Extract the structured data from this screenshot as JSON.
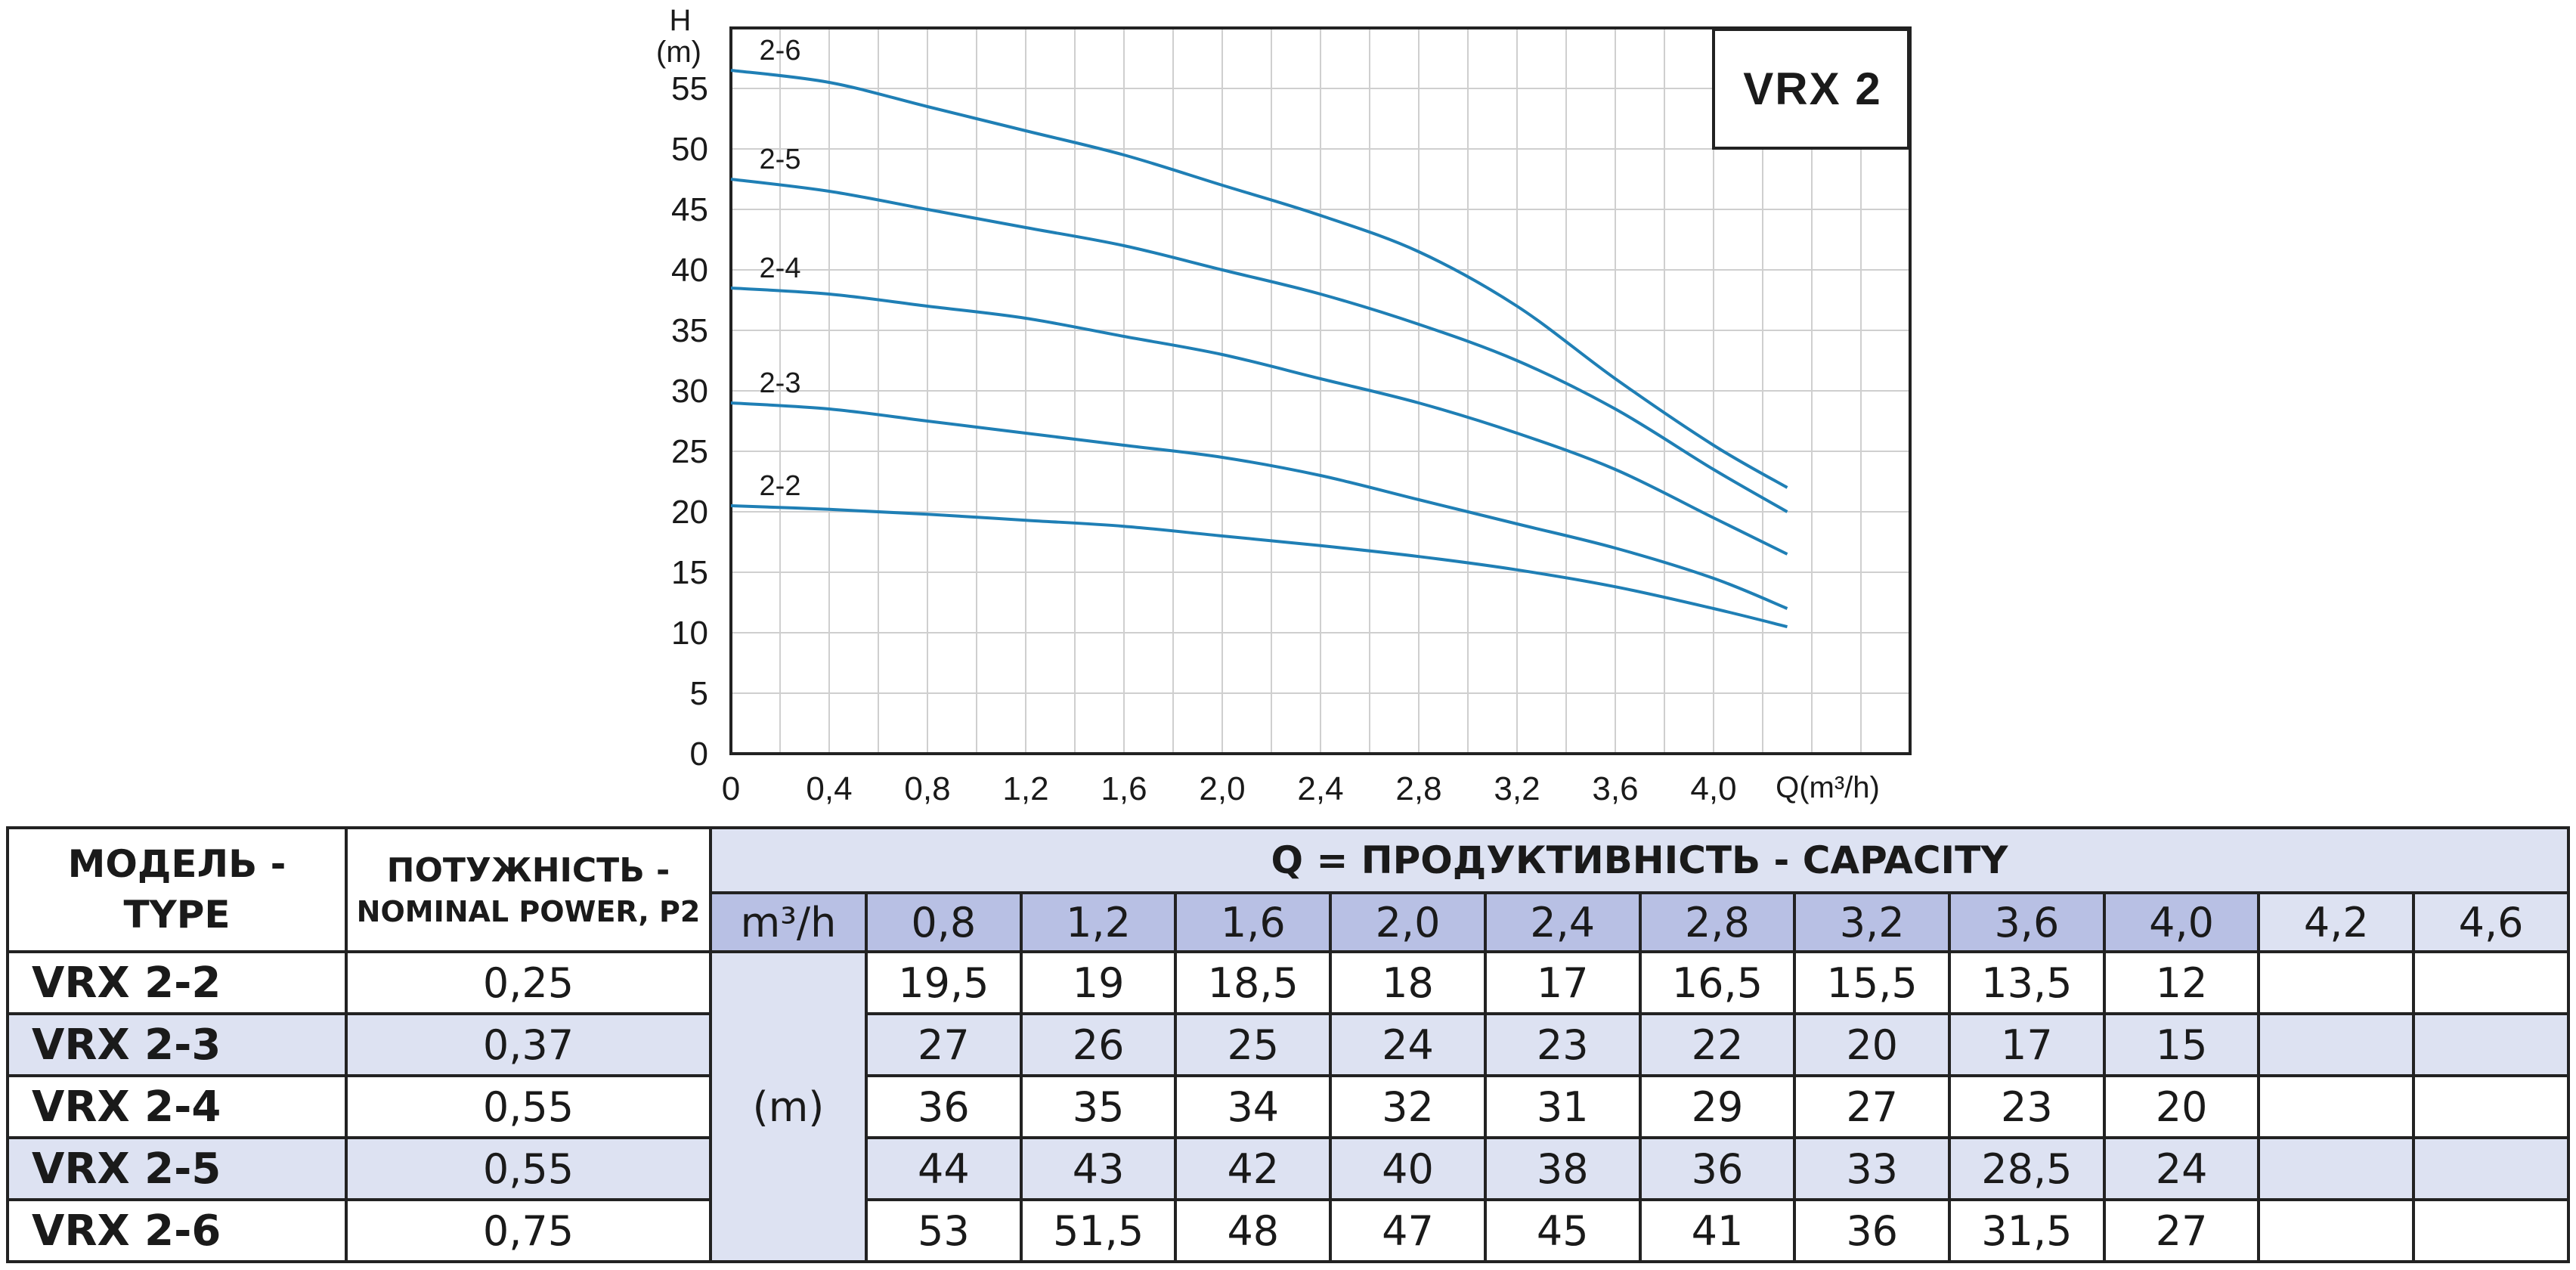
{
  "chart_data": {
    "type": "line",
    "title": "",
    "model_box": "VRX 2",
    "y_axis": {
      "title_line1": "H",
      "title_line2": "(m)",
      "ylim": [
        0,
        60
      ],
      "ticks": [
        "0",
        "5",
        "10",
        "15",
        "20",
        "25",
        "30",
        "35",
        "40",
        "45",
        "50",
        "55"
      ]
    },
    "x_axis": {
      "title": "Q(m³/h)",
      "xlim": [
        0,
        4.8
      ],
      "ticks": [
        {
          "value": 0,
          "label": "0"
        },
        {
          "value": 0.4,
          "label": "0,4"
        },
        {
          "value": 0.8,
          "label": "0,8"
        },
        {
          "value": 1.2,
          "label": "1,2"
        },
        {
          "value": 1.6,
          "label": "1,6"
        },
        {
          "value": 2.0,
          "label": "2,0"
        },
        {
          "value": 2.4,
          "label": "2,4"
        },
        {
          "value": 2.8,
          "label": "2,8"
        },
        {
          "value": 3.2,
          "label": "3,2"
        },
        {
          "value": 3.6,
          "label": "3,6"
        },
        {
          "value": 4.0,
          "label": "4,0"
        }
      ],
      "grid_step": 0.2
    },
    "grid": true,
    "curve_color": "#1f7fb5",
    "series": [
      {
        "name": "2-6",
        "x": [
          0,
          0.4,
          0.8,
          1.2,
          1.6,
          2.0,
          2.4,
          2.8,
          3.2,
          3.6,
          4.0,
          4.3
        ],
        "y": [
          56.5,
          55.5,
          53.5,
          51.5,
          49.5,
          47,
          44.5,
          41.5,
          37,
          31,
          25.5,
          22
        ]
      },
      {
        "name": "2-5",
        "x": [
          0,
          0.4,
          0.8,
          1.2,
          1.6,
          2.0,
          2.4,
          2.8,
          3.2,
          3.6,
          4.0,
          4.3
        ],
        "y": [
          47.5,
          46.5,
          45,
          43.5,
          42,
          40,
          38,
          35.5,
          32.5,
          28.5,
          23.5,
          20
        ]
      },
      {
        "name": "2-4",
        "x": [
          0,
          0.4,
          0.8,
          1.2,
          1.6,
          2.0,
          2.4,
          2.8,
          3.2,
          3.6,
          4.0,
          4.3
        ],
        "y": [
          38.5,
          38,
          37,
          36,
          34.5,
          33,
          31,
          29,
          26.5,
          23.5,
          19.5,
          16.5
        ]
      },
      {
        "name": "2-3",
        "x": [
          0,
          0.4,
          0.8,
          1.2,
          1.6,
          2.0,
          2.4,
          2.8,
          3.2,
          3.6,
          4.0,
          4.3
        ],
        "y": [
          29,
          28.5,
          27.5,
          26.5,
          25.5,
          24.5,
          23,
          21,
          19,
          17,
          14.5,
          12
        ]
      },
      {
        "name": "2-2",
        "x": [
          0,
          0.4,
          0.8,
          1.2,
          1.6,
          2.0,
          2.4,
          2.8,
          3.2,
          3.6,
          4.0,
          4.3
        ],
        "y": [
          20.5,
          20.2,
          19.8,
          19.3,
          18.8,
          18,
          17.2,
          16.3,
          15.2,
          13.8,
          12,
          10.5
        ]
      }
    ]
  },
  "table": {
    "header_model": [
      "МОДЕЛЬ -",
      "TYPE"
    ],
    "header_power": [
      "ПОТУЖНІСТЬ -",
      "NOMINAL POWER, P2"
    ],
    "header_capacity": "Q = ПРОДУКТИВНІСТЬ - CAPACITY",
    "unit_flow": "m³/h",
    "unit_head": "(m)",
    "q_values": [
      "0,8",
      "1,2",
      "1,6",
      "2,0",
      "2,4",
      "2,8",
      "3,2",
      "3,6",
      "4,0",
      "4,2",
      "4,6"
    ],
    "rows": [
      {
        "model": "VRX 2-2",
        "power": "0,25",
        "values": [
          "19,5",
          "19",
          "18,5",
          "18",
          "17",
          "16,5",
          "15,5",
          "13,5",
          "12",
          "",
          ""
        ]
      },
      {
        "model": "VRX 2-3",
        "power": "0,37",
        "values": [
          "27",
          "26",
          "25",
          "24",
          "23",
          "22",
          "20",
          "17",
          "15",
          "",
          ""
        ]
      },
      {
        "model": "VRX 2-4",
        "power": "0,55",
        "values": [
          "36",
          "35",
          "34",
          "32",
          "31",
          "29",
          "27",
          "23",
          "20",
          "",
          ""
        ]
      },
      {
        "model": "VRX 2-5",
        "power": "0,55",
        "values": [
          "44",
          "43",
          "42",
          "40",
          "38",
          "36",
          "33",
          "28,5",
          "24",
          "",
          ""
        ]
      },
      {
        "model": "VRX 2-6",
        "power": "0,75",
        "values": [
          "53",
          "51,5",
          "48",
          "47",
          "45",
          "41",
          "36",
          "31,5",
          "27",
          "",
          ""
        ]
      }
    ]
  }
}
